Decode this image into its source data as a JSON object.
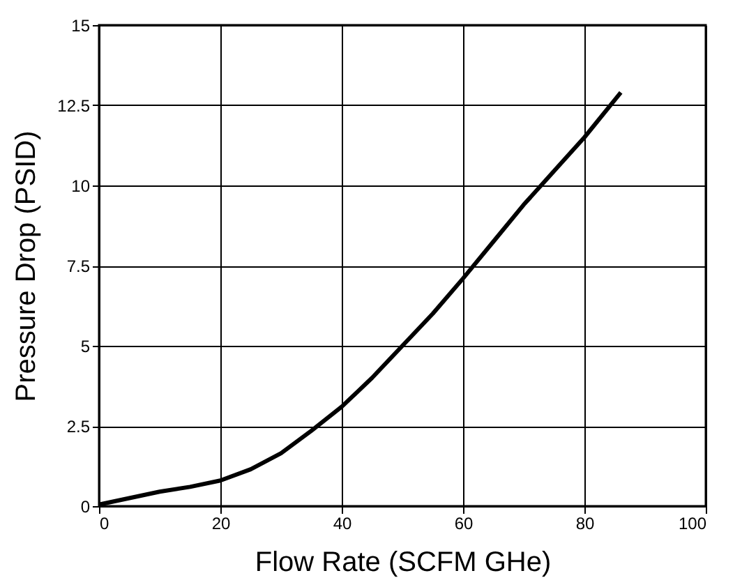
{
  "chart_data": {
    "type": "line",
    "xlabel": "Flow Rate (SCFM GHe)",
    "ylabel": "Pressure Drop (PSID)",
    "x": [
      0,
      5,
      10,
      15,
      20,
      25,
      30,
      35,
      40,
      45,
      50,
      55,
      60,
      65,
      70,
      75,
      80,
      86
    ],
    "series": [
      {
        "color": "#000000",
        "values": [
          0.05,
          0.25,
          0.45,
          0.6,
          0.8,
          1.15,
          1.65,
          2.35,
          3.1,
          4.0,
          5.0,
          6.0,
          7.1,
          8.25,
          9.4,
          10.45,
          11.5,
          12.9
        ]
      }
    ],
    "xlim": [
      0,
      100
    ],
    "xticks": [
      0,
      20,
      40,
      60,
      80,
      100
    ],
    "ylim": [
      0,
      15
    ],
    "yticks": [
      0,
      2.5,
      5,
      7.5,
      10,
      12.5,
      15
    ],
    "grid": true,
    "marker": "none",
    "line_style": "solid"
  }
}
